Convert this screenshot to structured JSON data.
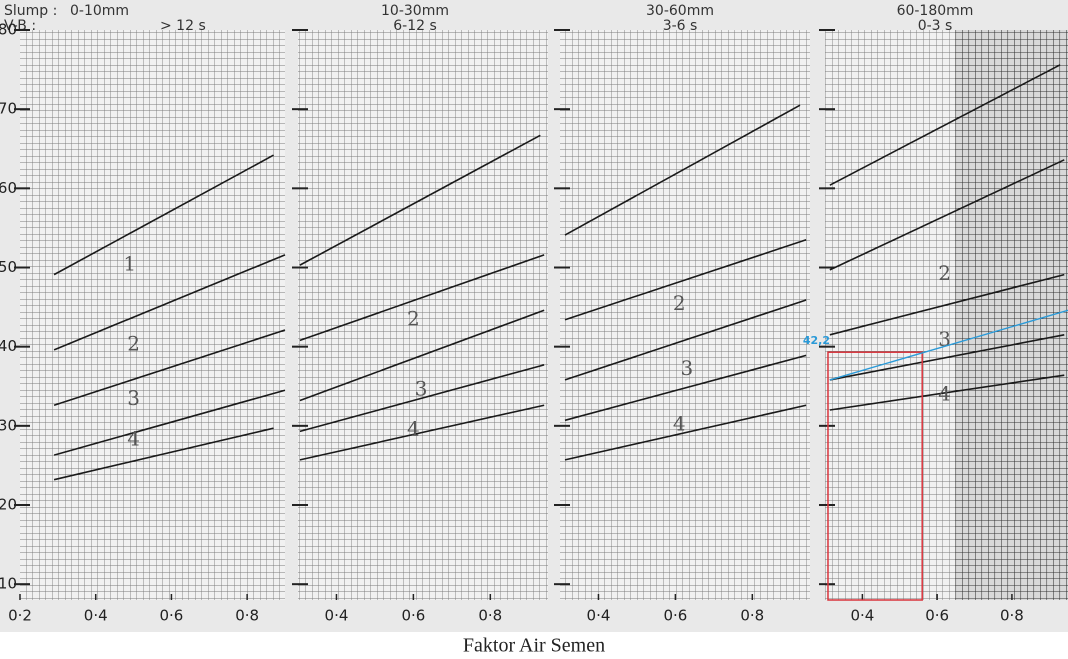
{
  "slump_label": "Slump :",
  "vb_label": "V-B :",
  "xlabel": "Faktor Air Semen",
  "chart_data": [
    {
      "type": "line",
      "slump": "0-10mm",
      "vb": "> 12 s",
      "xlim": [
        0.2,
        0.9
      ],
      "ylim": [
        8,
        80
      ],
      "xticks": [
        {
          "value": 0.2,
          "label": "0·2"
        },
        {
          "value": 0.4,
          "label": "0·4"
        },
        {
          "value": 0.6,
          "label": "0·6"
        },
        {
          "value": 0.8,
          "label": "0·8"
        }
      ],
      "yticks": [
        10,
        20,
        30,
        40,
        50,
        60,
        70,
        80
      ],
      "lines": [
        {
          "x": [
            0.29,
            0.87
          ],
          "y": [
            49.1,
            64.2
          ]
        },
        {
          "x": [
            0.29,
            0.9
          ],
          "y": [
            39.6,
            51.6
          ]
        },
        {
          "x": [
            0.29,
            0.9
          ],
          "y": [
            32.6,
            42.1
          ]
        },
        {
          "x": [
            0.29,
            0.9
          ],
          "y": [
            26.3,
            34.5
          ]
        },
        {
          "x": [
            0.29,
            0.87
          ],
          "y": [
            23.2,
            29.7
          ]
        }
      ],
      "annotations": [
        {
          "text": "1",
          "x": 0.49,
          "y": 50.3
        },
        {
          "text": "2",
          "x": 0.5,
          "y": 40.2
        },
        {
          "text": "3",
          "x": 0.5,
          "y": 33.3
        },
        {
          "text": "4",
          "x": 0.5,
          "y": 28.2
        }
      ]
    },
    {
      "type": "line",
      "slump": "10-30mm",
      "vb": "6-12 s",
      "xlim": [
        0.3,
        0.95
      ],
      "ylim": [
        8,
        80
      ],
      "xticks": [
        {
          "value": 0.4,
          "label": "0·4"
        },
        {
          "value": 0.6,
          "label": "0·6"
        },
        {
          "value": 0.8,
          "label": "0·8"
        }
      ],
      "yticks": [
        10,
        20,
        30,
        40,
        50,
        60,
        70,
        80
      ],
      "lines": [
        {
          "x": [
            0.305,
            0.93
          ],
          "y": [
            50.3,
            66.7
          ]
        },
        {
          "x": [
            0.305,
            0.94
          ],
          "y": [
            40.8,
            51.6
          ]
        },
        {
          "x": [
            0.305,
            0.94
          ],
          "y": [
            33.2,
            44.6
          ]
        },
        {
          "x": [
            0.305,
            0.94
          ],
          "y": [
            29.3,
            37.7
          ]
        },
        {
          "x": [
            0.305,
            0.94
          ],
          "y": [
            25.7,
            32.6
          ]
        }
      ],
      "annotations": [
        {
          "text": "2",
          "x": 0.6,
          "y": 43.4
        },
        {
          "text": "3",
          "x": 0.62,
          "y": 34.5
        },
        {
          "text": "4",
          "x": 0.6,
          "y": 29.5
        }
      ]
    },
    {
      "type": "line",
      "slump": "30-60mm",
      "vb": "3-6 s",
      "xlim": [
        0.3,
        0.95
      ],
      "ylim": [
        8,
        80
      ],
      "xticks": [
        {
          "value": 0.4,
          "label": "0·4"
        },
        {
          "value": 0.6,
          "label": "0·6"
        },
        {
          "value": 0.8,
          "label": "0·8"
        }
      ],
      "yticks": [
        10,
        20,
        30,
        40,
        50,
        60,
        70,
        80
      ],
      "lines": [
        {
          "x": [
            0.313,
            0.924
          ],
          "y": [
            54.1,
            70.5
          ]
        },
        {
          "x": [
            0.313,
            0.94
          ],
          "y": [
            43.4,
            53.5
          ]
        },
        {
          "x": [
            0.313,
            0.94
          ],
          "y": [
            35.8,
            45.9
          ]
        },
        {
          "x": [
            0.313,
            0.94
          ],
          "y": [
            30.7,
            38.9
          ]
        },
        {
          "x": [
            0.313,
            0.94
          ],
          "y": [
            25.7,
            32.6
          ]
        }
      ],
      "annotations": [
        {
          "text": "2",
          "x": 0.61,
          "y": 45.3
        },
        {
          "text": "3",
          "x": 0.63,
          "y": 37.1
        },
        {
          "text": "4",
          "x": 0.61,
          "y": 30.1
        }
      ]
    },
    {
      "type": "line",
      "slump": "60-180mm",
      "vb": "0-3 s",
      "xlim": [
        0.3,
        0.95
      ],
      "ylim": [
        8,
        80
      ],
      "xticks": [
        {
          "value": 0.4,
          "label": "0·4"
        },
        {
          "value": 0.6,
          "label": "0·6"
        },
        {
          "value": 0.8,
          "label": "0·8"
        }
      ],
      "yticks": [
        10,
        20,
        30,
        40,
        50,
        60,
        70,
        80
      ],
      "lines": [
        {
          "x": [
            0.313,
            0.929
          ],
          "y": [
            60.4,
            75.6
          ]
        },
        {
          "x": [
            0.313,
            0.94
          ],
          "y": [
            49.7,
            63.6
          ]
        },
        {
          "x": [
            0.313,
            0.94
          ],
          "y": [
            41.5,
            49.1
          ]
        },
        {
          "x": [
            0.313,
            0.94
          ],
          "y": [
            35.8,
            41.5
          ]
        },
        {
          "x": [
            0.313,
            0.94
          ],
          "y": [
            32,
            36.4
          ]
        }
      ],
      "annotations": [
        {
          "text": "2",
          "x": 0.62,
          "y": 49.1
        },
        {
          "text": "3",
          "x": 0.62,
          "y": 40.8
        },
        {
          "text": "4",
          "x": 0.62,
          "y": 33.9
        }
      ],
      "reading_line": {
        "x": [
          0.313,
          0.95
        ],
        "y": [
          35.8,
          44.6
        ],
        "label": "42,2"
      },
      "highlight_box": {
        "x": [
          0.308,
          0.56
        ],
        "y": [
          8,
          39.3
        ]
      }
    }
  ]
}
